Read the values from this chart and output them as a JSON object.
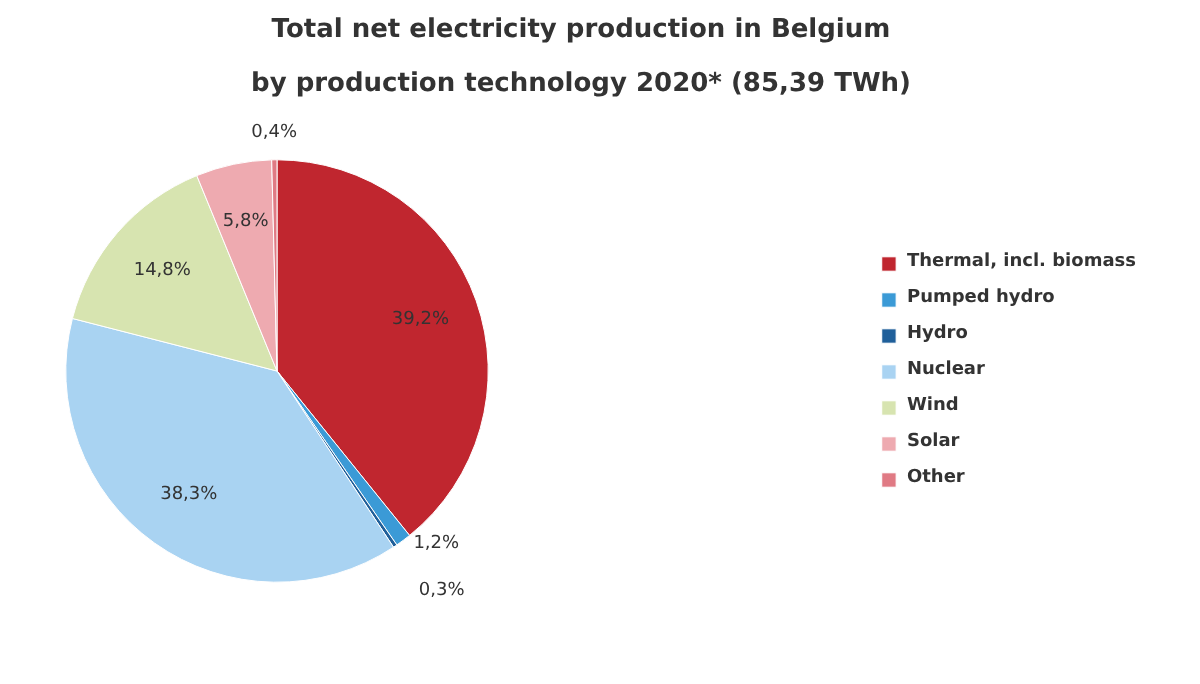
{
  "chart_data": {
    "type": "pie",
    "title": "Total net electricity production in Belgium",
    "subtitle": "by production technology 2020* (85,39 TWh)",
    "categories": [
      "Thermal, incl. biomass",
      "Pumped hydro",
      "Hydro",
      "Nuclear",
      "Wind",
      "Solar",
      "Other"
    ],
    "values": [
      39.2,
      1.2,
      0.3,
      38.3,
      14.8,
      5.8,
      0.4
    ],
    "value_labels": [
      "39,2%",
      "1,2%",
      "0,3%",
      "38,3%",
      "14,8%",
      "5,8%",
      "0,4%"
    ],
    "colors": [
      "#c0262f",
      "#3b9ad6",
      "#1f5f9a",
      "#a9d3f2",
      "#d7e4b0",
      "#eeaab0",
      "#e07a84"
    ],
    "legend": "right"
  }
}
